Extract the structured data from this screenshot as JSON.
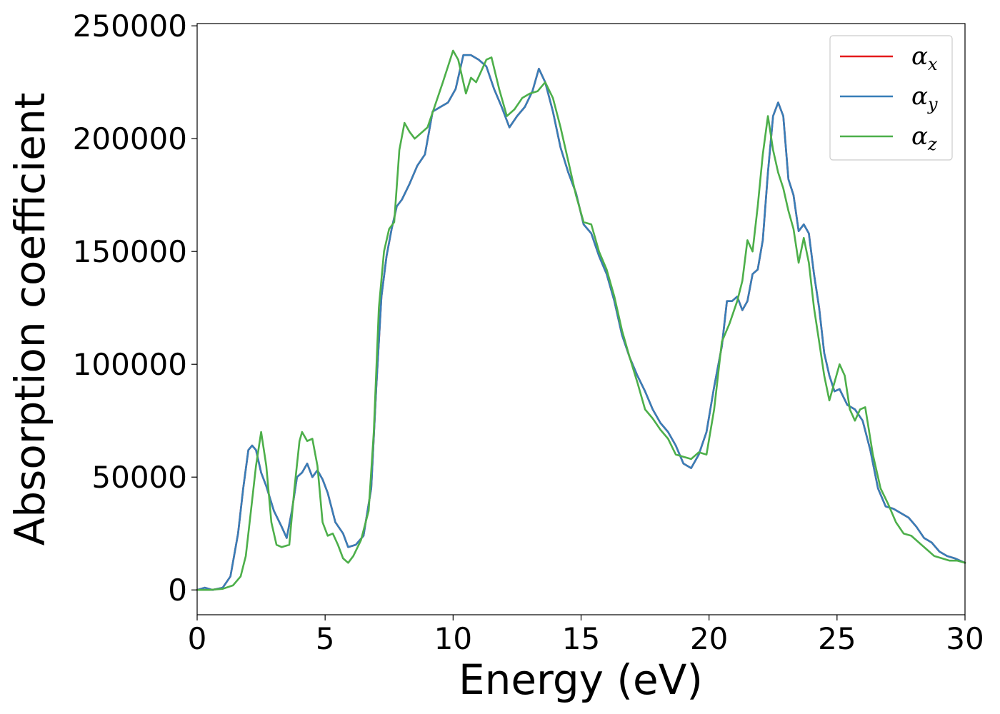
{
  "chart_data": {
    "type": "line",
    "title": "",
    "xlabel": "Energy (eV)",
    "ylabel": "Absorption coefficient",
    "xlim": [
      0,
      30
    ],
    "ylim": [
      -11000,
      251000
    ],
    "xticks": [
      0,
      5,
      10,
      15,
      20,
      25,
      30
    ],
    "xtick_labels": [
      "0",
      "5",
      "10",
      "15",
      "20",
      "25",
      "30"
    ],
    "yticks": [
      0,
      50000,
      100000,
      150000,
      200000,
      250000
    ],
    "ytick_labels": [
      "0",
      "50000",
      "100000",
      "150000",
      "200000",
      "250000"
    ],
    "grid": false,
    "legend_position": "top-right",
    "series": [
      {
        "name": "αx",
        "legend_base": "α",
        "legend_sub": "x",
        "color": "#e41a1c",
        "x": [
          0,
          0.3,
          0.6,
          1.0,
          1.3,
          1.6,
          1.8,
          2.0,
          2.15,
          2.3,
          2.5,
          2.7,
          3.0,
          3.3,
          3.5,
          3.7,
          3.9,
          4.1,
          4.3,
          4.5,
          4.7,
          4.9,
          5.1,
          5.4,
          5.7,
          5.9,
          6.2,
          6.5,
          6.8,
          7.0,
          7.2,
          7.4,
          7.6,
          7.8,
          8.0,
          8.3,
          8.6,
          8.9,
          9.2,
          9.5,
          9.8,
          10.1,
          10.4,
          10.7,
          11.0,
          11.3,
          11.6,
          11.9,
          12.2,
          12.5,
          12.8,
          13.1,
          13.35,
          13.6,
          13.9,
          14.2,
          14.5,
          14.8,
          15.1,
          15.4,
          15.7,
          16.0,
          16.3,
          16.6,
          16.9,
          17.2,
          17.5,
          17.8,
          18.1,
          18.4,
          18.7,
          19.0,
          19.3,
          19.6,
          19.9,
          20.2,
          20.5,
          20.7,
          20.9,
          21.1,
          21.3,
          21.5,
          21.7,
          21.9,
          22.1,
          22.3,
          22.5,
          22.7,
          22.9,
          23.1,
          23.3,
          23.5,
          23.7,
          23.9,
          24.1,
          24.3,
          24.5,
          24.7,
          24.9,
          25.1,
          25.4,
          25.7,
          26.0,
          26.3,
          26.6,
          26.9,
          27.2,
          27.5,
          27.8,
          28.1,
          28.4,
          28.7,
          29.0,
          29.3,
          29.6,
          30.0
        ],
        "y": [
          0,
          1000,
          0,
          1000,
          6000,
          25000,
          45000,
          62000,
          64000,
          62000,
          52000,
          46000,
          35000,
          28000,
          23000,
          35000,
          50000,
          52000,
          56000,
          50000,
          53000,
          49000,
          43000,
          30000,
          25000,
          19000,
          20000,
          24000,
          45000,
          90000,
          130000,
          148000,
          160000,
          170000,
          173000,
          180000,
          188000,
          193000,
          212000,
          214000,
          216000,
          222000,
          237000,
          237000,
          235000,
          232000,
          222000,
          214000,
          205000,
          210000,
          214000,
          221000,
          231000,
          225000,
          212000,
          196000,
          185000,
          176000,
          162000,
          158000,
          148000,
          140000,
          128000,
          113000,
          103000,
          95000,
          88000,
          80000,
          74000,
          70000,
          64000,
          56000,
          54000,
          60000,
          70000,
          90000,
          108000,
          128000,
          128000,
          130000,
          124000,
          128000,
          140000,
          142000,
          155000,
          185000,
          210000,
          216000,
          210000,
          182000,
          175000,
          159000,
          162000,
          158000,
          140000,
          125000,
          105000,
          95000,
          88000,
          89000,
          82000,
          80000,
          75000,
          62000,
          45000,
          37000,
          36000,
          34000,
          32000,
          28000,
          23000,
          21000,
          17000,
          15000,
          14000,
          12000
        ]
      },
      {
        "name": "αy",
        "legend_base": "α",
        "legend_sub": "y",
        "color": "#377eb8",
        "x": [
          0,
          0.3,
          0.6,
          1.0,
          1.3,
          1.6,
          1.8,
          2.0,
          2.15,
          2.3,
          2.5,
          2.7,
          3.0,
          3.3,
          3.5,
          3.7,
          3.9,
          4.1,
          4.3,
          4.5,
          4.7,
          4.9,
          5.1,
          5.4,
          5.7,
          5.9,
          6.2,
          6.5,
          6.8,
          7.0,
          7.2,
          7.4,
          7.6,
          7.8,
          8.0,
          8.3,
          8.6,
          8.9,
          9.2,
          9.5,
          9.8,
          10.1,
          10.4,
          10.7,
          11.0,
          11.3,
          11.6,
          11.9,
          12.2,
          12.5,
          12.8,
          13.1,
          13.35,
          13.6,
          13.9,
          14.2,
          14.5,
          14.8,
          15.1,
          15.4,
          15.7,
          16.0,
          16.3,
          16.6,
          16.9,
          17.2,
          17.5,
          17.8,
          18.1,
          18.4,
          18.7,
          19.0,
          19.3,
          19.6,
          19.9,
          20.2,
          20.5,
          20.7,
          20.9,
          21.1,
          21.3,
          21.5,
          21.7,
          21.9,
          22.1,
          22.3,
          22.5,
          22.7,
          22.9,
          23.1,
          23.3,
          23.5,
          23.7,
          23.9,
          24.1,
          24.3,
          24.5,
          24.7,
          24.9,
          25.1,
          25.4,
          25.7,
          26.0,
          26.3,
          26.6,
          26.9,
          27.2,
          27.5,
          27.8,
          28.1,
          28.4,
          28.7,
          29.0,
          29.3,
          29.6,
          30.0
        ],
        "y": [
          0,
          1000,
          0,
          1000,
          6000,
          25000,
          45000,
          62000,
          64000,
          62000,
          52000,
          46000,
          35000,
          28000,
          23000,
          35000,
          50000,
          52000,
          56000,
          50000,
          53000,
          49000,
          43000,
          30000,
          25000,
          19000,
          20000,
          24000,
          45000,
          90000,
          130000,
          148000,
          160000,
          170000,
          173000,
          180000,
          188000,
          193000,
          212000,
          214000,
          216000,
          222000,
          237000,
          237000,
          235000,
          232000,
          222000,
          214000,
          205000,
          210000,
          214000,
          221000,
          231000,
          225000,
          212000,
          196000,
          185000,
          176000,
          162000,
          158000,
          148000,
          140000,
          128000,
          113000,
          103000,
          95000,
          88000,
          80000,
          74000,
          70000,
          64000,
          56000,
          54000,
          60000,
          70000,
          90000,
          108000,
          128000,
          128000,
          130000,
          124000,
          128000,
          140000,
          142000,
          155000,
          185000,
          210000,
          216000,
          210000,
          182000,
          175000,
          159000,
          162000,
          158000,
          140000,
          125000,
          105000,
          95000,
          88000,
          89000,
          82000,
          80000,
          75000,
          62000,
          45000,
          37000,
          36000,
          34000,
          32000,
          28000,
          23000,
          21000,
          17000,
          15000,
          14000,
          12000
        ]
      },
      {
        "name": "αz",
        "legend_base": "α",
        "legend_sub": "z",
        "color": "#4daf4a",
        "x": [
          0,
          0.5,
          1.0,
          1.4,
          1.7,
          1.9,
          2.1,
          2.3,
          2.5,
          2.7,
          2.9,
          3.1,
          3.3,
          3.6,
          3.8,
          4.0,
          4.1,
          4.3,
          4.5,
          4.7,
          4.9,
          5.1,
          5.3,
          5.5,
          5.7,
          5.9,
          6.1,
          6.4,
          6.7,
          6.9,
          7.1,
          7.3,
          7.5,
          7.7,
          7.9,
          8.1,
          8.3,
          8.5,
          8.7,
          9.0,
          9.3,
          9.6,
          9.8,
          10.0,
          10.2,
          10.5,
          10.7,
          10.9,
          11.1,
          11.3,
          11.5,
          11.8,
          12.1,
          12.4,
          12.7,
          13.0,
          13.3,
          13.6,
          13.9,
          14.2,
          14.5,
          14.8,
          15.1,
          15.4,
          15.7,
          16.0,
          16.3,
          16.6,
          16.9,
          17.2,
          17.5,
          17.8,
          18.1,
          18.4,
          18.7,
          19.0,
          19.3,
          19.6,
          19.9,
          20.2,
          20.5,
          20.8,
          21.1,
          21.3,
          21.5,
          21.7,
          21.9,
          22.1,
          22.3,
          22.5,
          22.7,
          22.9,
          23.1,
          23.3,
          23.5,
          23.7,
          23.9,
          24.1,
          24.3,
          24.5,
          24.7,
          24.9,
          25.1,
          25.3,
          25.5,
          25.7,
          25.9,
          26.1,
          26.4,
          26.7,
          27.0,
          27.3,
          27.6,
          27.9,
          28.2,
          28.5,
          28.8,
          29.1,
          29.4,
          29.7,
          30.0
        ],
        "y": [
          0,
          0,
          500,
          2000,
          6000,
          15000,
          35000,
          55000,
          70000,
          55000,
          30000,
          20000,
          19000,
          20000,
          45000,
          66000,
          70000,
          66000,
          67000,
          55000,
          30000,
          24000,
          25000,
          20000,
          14000,
          12000,
          15000,
          22000,
          35000,
          70000,
          125000,
          150000,
          160000,
          163000,
          195000,
          207000,
          203000,
          200000,
          202000,
          205000,
          215000,
          225000,
          232000,
          239000,
          235000,
          220000,
          227000,
          225000,
          230000,
          235000,
          236000,
          222000,
          210000,
          213000,
          218000,
          220000,
          221000,
          225000,
          218000,
          205000,
          190000,
          175000,
          163000,
          162000,
          150000,
          142000,
          130000,
          115000,
          103000,
          92000,
          80000,
          76000,
          71000,
          67000,
          60000,
          59000,
          58000,
          61000,
          60000,
          80000,
          110000,
          118000,
          128000,
          137000,
          155000,
          150000,
          170000,
          193000,
          210000,
          195000,
          185000,
          178000,
          168000,
          160000,
          145000,
          156000,
          145000,
          125000,
          110000,
          95000,
          84000,
          92000,
          100000,
          95000,
          80000,
          75000,
          80000,
          81000,
          60000,
          45000,
          38000,
          30000,
          25000,
          24000,
          21000,
          18000,
          15000,
          14000,
          13000,
          13000,
          12000
        ]
      }
    ]
  }
}
